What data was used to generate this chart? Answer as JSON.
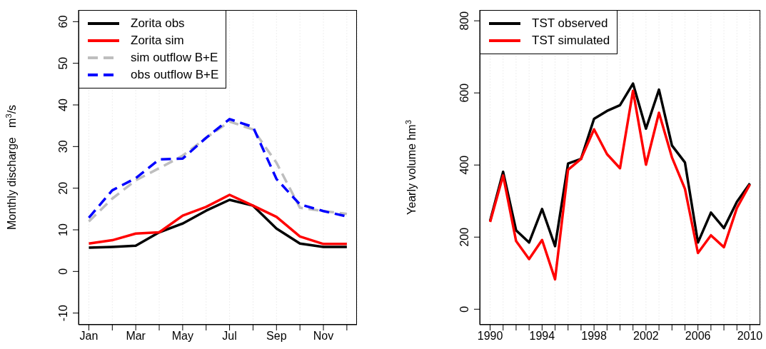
{
  "chart_data": [
    {
      "type": "line",
      "ylabel": "Monthly discharge   m$^{3}$/s",
      "categories": [
        "Jan",
        null,
        "Mar",
        null,
        "May",
        null,
        "Jul",
        null,
        "Sep",
        null,
        "Nov",
        null
      ],
      "ylim": [
        -12.8,
        62.8
      ],
      "yticks": [
        -10,
        0,
        10,
        20,
        30,
        40,
        50,
        60
      ],
      "grid": "x",
      "legend": "top left",
      "marker": "none",
      "series": [
        {
          "name": "Zorita obs",
          "color": "#000000",
          "line_style": "solid",
          "values": [
            5.7,
            5.9,
            6.2,
            9.4,
            11.5,
            14.6,
            17.2,
            15.8,
            10.3,
            6.7,
            5.9,
            5.9
          ]
        },
        {
          "name": "Zorita sim",
          "color": "#ff0000",
          "line_style": "solid",
          "values": [
            6.7,
            7.5,
            9.1,
            9.4,
            13.4,
            15.5,
            18.4,
            15.8,
            13.1,
            8.4,
            6.6,
            6.6
          ]
        },
        {
          "name": "sim outflow B+E",
          "color": "#bebebe",
          "line_style": "dashed",
          "values": [
            12.0,
            17.5,
            21.9,
            24.8,
            27.8,
            32.1,
            36.0,
            34.1,
            26.1,
            15.3,
            14.5,
            13.8
          ]
        },
        {
          "name": "obs outflow B+E",
          "color": "#0000ff",
          "line_style": "dashed",
          "values": [
            12.9,
            19.5,
            22.4,
            26.9,
            27.1,
            32.1,
            36.6,
            34.7,
            22.2,
            16.1,
            14.5,
            13.2
          ]
        }
      ]
    },
    {
      "type": "line",
      "ylabel": "Yearly volume hm$^{3}$",
      "x": [
        1990,
        1991,
        1992,
        1993,
        1994,
        1995,
        1996,
        1997,
        1998,
        1999,
        2000,
        2001,
        2002,
        2003,
        2004,
        2005,
        2006,
        2007,
        2008,
        2009,
        2010
      ],
      "xlim": [
        1989.2,
        2010.8
      ],
      "xticks": [
        1990,
        {
          "value": 1991,
          "label": null
        },
        {
          "value": 1992,
          "label": null
        },
        {
          "value": 1993,
          "label": null
        },
        1994,
        {
          "value": 1995,
          "label": null
        },
        {
          "value": 1996,
          "label": null
        },
        {
          "value": 1997,
          "label": null
        },
        1998,
        {
          "value": 1999,
          "label": null
        },
        {
          "value": 2000,
          "label": null
        },
        {
          "value": 2001,
          "label": null
        },
        2002,
        {
          "value": 2003,
          "label": null
        },
        {
          "value": 2004,
          "label": null
        },
        {
          "value": 2005,
          "label": null
        },
        2006,
        {
          "value": 2007,
          "label": null
        },
        {
          "value": 2008,
          "label": null
        },
        {
          "value": 2009,
          "label": null
        },
        2010
      ],
      "ylim": [
        -43,
        830
      ],
      "yticks": [
        0,
        200,
        400,
        600,
        800
      ],
      "grid": "x",
      "legend": "top left",
      "marker": "none",
      "series": [
        {
          "name": "TST observed",
          "color": "#000000",
          "line_style": "solid",
          "values": [
            245,
            381,
            219,
            185,
            278,
            175,
            404,
            417,
            528,
            550,
            566,
            626,
            501,
            609,
            454,
            407,
            185,
            268,
            225,
            298,
            349
          ]
        },
        {
          "name": "TST simulated",
          "color": "#ff0000",
          "line_style": "solid",
          "values": [
            242,
            371,
            189,
            139,
            192,
            83,
            387,
            417,
            499,
            430,
            391,
            606,
            401,
            545,
            421,
            334,
            156,
            205,
            172,
            281,
            346
          ]
        }
      ]
    }
  ]
}
